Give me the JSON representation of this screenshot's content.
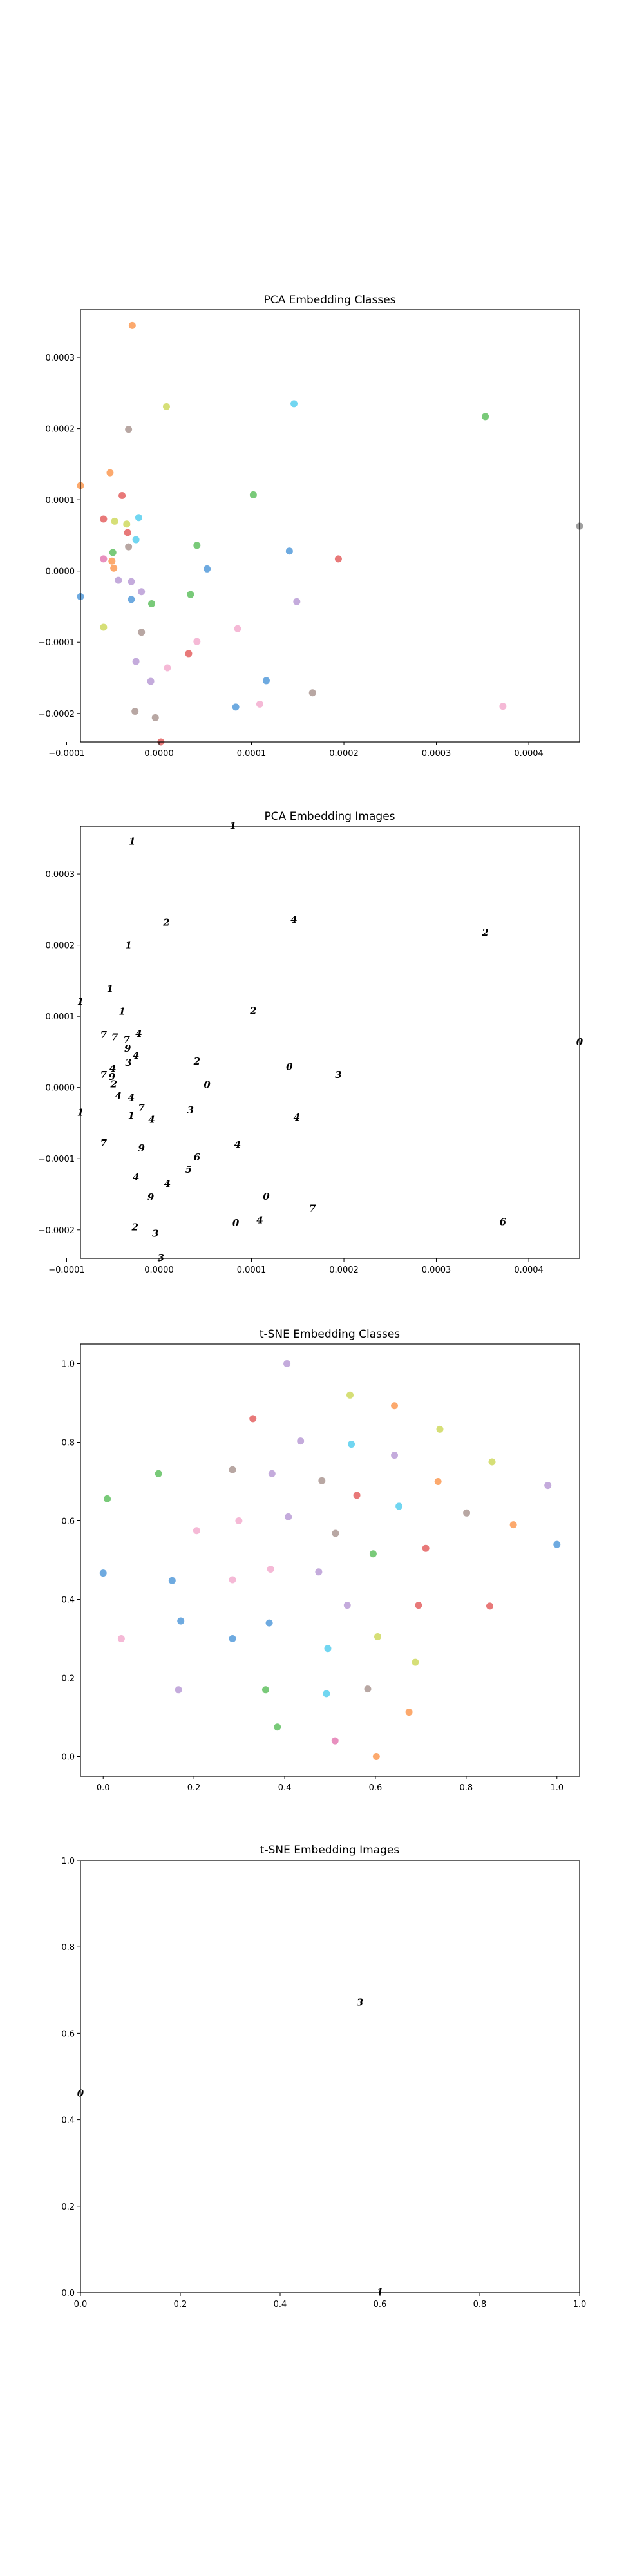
{
  "chart_data": [
    {
      "type": "scatter",
      "title": "PCA Embedding Classes",
      "xlim": [
        -8.5e-05,
        0.000455
      ],
      "ylim": [
        -0.00024,
        0.000367
      ],
      "xticks": [
        -0.0001,
        0.0,
        0.0001,
        0.0002,
        0.0003,
        0.0004
      ],
      "xtick_labels": [
        "−0.0001",
        "0.0000",
        "0.0001",
        "0.0002",
        "0.0003",
        "0.0004"
      ],
      "yticks": [
        -0.0002,
        -0.0001,
        0.0,
        0.0001,
        0.0002,
        0.0003
      ],
      "ytick_labels": [
        "−0.0002",
        "−0.0001",
        "0.0000",
        "0.0001",
        "0.0002",
        "0.0003"
      ],
      "points": [
        {
          "x": -2.9e-05,
          "y": 0.000345,
          "c": "#fb8c3c"
        },
        {
          "x": 8e-06,
          "y": 0.000231,
          "c": "#c8d44a"
        },
        {
          "x": 0.000146,
          "y": 0.000235,
          "c": "#41c8ec"
        },
        {
          "x": 0.000353,
          "y": 0.000217,
          "c": "#4cb84c"
        },
        {
          "x": -3.3e-05,
          "y": 0.000199,
          "c": "#a08a84"
        },
        {
          "x": -8.5e-05,
          "y": 0.00012,
          "c": "#fb8c3c"
        },
        {
          "x": -5.3e-05,
          "y": 0.000138,
          "c": "#fb8c3c"
        },
        {
          "x": -4e-05,
          "y": 0.000106,
          "c": "#e04c4c"
        },
        {
          "x": 0.000102,
          "y": 0.000107,
          "c": "#4cb84c"
        },
        {
          "x": -6e-05,
          "y": 7.3e-05,
          "c": "#e04c4c"
        },
        {
          "x": -4.8e-05,
          "y": 7e-05,
          "c": "#c8d44a"
        },
        {
          "x": -3.5e-05,
          "y": 6.6e-05,
          "c": "#c8d44a"
        },
        {
          "x": -2.2e-05,
          "y": 7.5e-05,
          "c": "#41c8ec"
        },
        {
          "x": 0.000455,
          "y": 6.3e-05,
          "c": "#7f7f7f"
        },
        {
          "x": -3.4e-05,
          "y": 5.4e-05,
          "c": "#e04c4c"
        },
        {
          "x": -2.5e-05,
          "y": 4.4e-05,
          "c": "#41c8ec"
        },
        {
          "x": -3.3e-05,
          "y": 3.4e-05,
          "c": "#a08a84"
        },
        {
          "x": 4.1e-05,
          "y": 3.6e-05,
          "c": "#4cb84c"
        },
        {
          "x": -5e-05,
          "y": 2.6e-05,
          "c": "#4cb84c"
        },
        {
          "x": 0.000141,
          "y": 2.8e-05,
          "c": "#3d8ed6"
        },
        {
          "x": -6e-05,
          "y": 1.7e-05,
          "c": "#e06baa"
        },
        {
          "x": -5.1e-05,
          "y": 1.4e-05,
          "c": "#fb8c3c"
        },
        {
          "x": 0.000194,
          "y": 1.7e-05,
          "c": "#e04c4c"
        },
        {
          "x": -4.9e-05,
          "y": 4e-06,
          "c": "#fb8c3c"
        },
        {
          "x": 5.2e-05,
          "y": 3e-06,
          "c": "#3d8ed6"
        },
        {
          "x": -8.5e-05,
          "y": -3.6e-05,
          "c": "#3d8ed6"
        },
        {
          "x": -4.4e-05,
          "y": -1.3e-05,
          "c": "#b08fd0"
        },
        {
          "x": -3e-05,
          "y": -1.5e-05,
          "c": "#b08fd0"
        },
        {
          "x": -1.9e-05,
          "y": -2.9e-05,
          "c": "#b08fd0"
        },
        {
          "x": 3.4e-05,
          "y": -3.3e-05,
          "c": "#4cb84c"
        },
        {
          "x": -3e-05,
          "y": -4e-05,
          "c": "#3d8ed6"
        },
        {
          "x": -8e-06,
          "y": -4.6e-05,
          "c": "#4cb84c"
        },
        {
          "x": 0.000149,
          "y": -4.3e-05,
          "c": "#b08fd0"
        },
        {
          "x": -6e-05,
          "y": -7.9e-05,
          "c": "#c8d44a"
        },
        {
          "x": -1.9e-05,
          "y": -8.6e-05,
          "c": "#a08a84"
        },
        {
          "x": 4.1e-05,
          "y": -9.9e-05,
          "c": "#f2a2c8"
        },
        {
          "x": 8.5e-05,
          "y": -8.1e-05,
          "c": "#f2a2c8"
        },
        {
          "x": 3.2e-05,
          "y": -0.000116,
          "c": "#e04c4c"
        },
        {
          "x": -2.5e-05,
          "y": -0.000127,
          "c": "#b08fd0"
        },
        {
          "x": 9e-06,
          "y": -0.000136,
          "c": "#f2a2c8"
        },
        {
          "x": -9e-06,
          "y": -0.000155,
          "c": "#b08fd0"
        },
        {
          "x": 0.000116,
          "y": -0.000154,
          "c": "#3d8ed6"
        },
        {
          "x": 0.000166,
          "y": -0.000171,
          "c": "#a08a84"
        },
        {
          "x": 8.3e-05,
          "y": -0.000191,
          "c": "#3d8ed6"
        },
        {
          "x": 0.000109,
          "y": -0.000187,
          "c": "#f2a2c8"
        },
        {
          "x": -2.6e-05,
          "y": -0.000197,
          "c": "#a08a84"
        },
        {
          "x": -4e-06,
          "y": -0.000206,
          "c": "#a08a84"
        },
        {
          "x": 0.000372,
          "y": -0.00019,
          "c": "#f2a2c8"
        },
        {
          "x": 2e-06,
          "y": -0.00024,
          "c": "#e04c4c"
        }
      ]
    },
    {
      "type": "scatter",
      "title": "PCA Embedding Images",
      "xlim": [
        -8.5e-05,
        0.000455
      ],
      "ylim": [
        -0.00024,
        0.000367
      ],
      "xticks": [
        -0.0001,
        0.0,
        0.0001,
        0.0002,
        0.0003,
        0.0004
      ],
      "xtick_labels": [
        "−0.0001",
        "0.0000",
        "0.0001",
        "0.0002",
        "0.0003",
        "0.0004"
      ],
      "yticks": [
        -0.0002,
        -0.0001,
        0.0,
        0.0001,
        0.0002,
        0.0003
      ],
      "ytick_labels": [
        "−0.0002",
        "−0.0001",
        "0.0000",
        "0.0001",
        "0.0002",
        "0.0003"
      ],
      "points": [
        {
          "x": -2.9e-05,
          "y": 0.000345,
          "g": "1"
        },
        {
          "x": 8e-05,
          "y": 0.000367,
          "g": "1"
        },
        {
          "x": 8e-06,
          "y": 0.000231,
          "g": "2"
        },
        {
          "x": 0.000146,
          "y": 0.000235,
          "g": "4"
        },
        {
          "x": 0.000353,
          "y": 0.000217,
          "g": "2"
        },
        {
          "x": -3.3e-05,
          "y": 0.000199,
          "g": "1"
        },
        {
          "x": -8.5e-05,
          "y": 0.00012,
          "g": "1"
        },
        {
          "x": -5.3e-05,
          "y": 0.000138,
          "g": "1"
        },
        {
          "x": -4e-05,
          "y": 0.000106,
          "g": "1"
        },
        {
          "x": 0.000102,
          "y": 0.000107,
          "g": "2"
        },
        {
          "x": -6e-05,
          "y": 7.3e-05,
          "g": "7"
        },
        {
          "x": -4.8e-05,
          "y": 7e-05,
          "g": "7"
        },
        {
          "x": -3.5e-05,
          "y": 6.6e-05,
          "g": "7"
        },
        {
          "x": -2.2e-05,
          "y": 7.5e-05,
          "g": "4"
        },
        {
          "x": 0.000455,
          "y": 6.3e-05,
          "g": "0"
        },
        {
          "x": -3.4e-05,
          "y": 5.4e-05,
          "g": "9"
        },
        {
          "x": -2.5e-05,
          "y": 4.4e-05,
          "g": "4"
        },
        {
          "x": -3.3e-05,
          "y": 3.4e-05,
          "g": "3"
        },
        {
          "x": 4.1e-05,
          "y": 3.6e-05,
          "g": "2"
        },
        {
          "x": -5e-05,
          "y": 2.6e-05,
          "g": "4"
        },
        {
          "x": 0.000141,
          "y": 2.8e-05,
          "g": "0"
        },
        {
          "x": -6e-05,
          "y": 1.7e-05,
          "g": "7"
        },
        {
          "x": -5.1e-05,
          "y": 1.4e-05,
          "g": "9"
        },
        {
          "x": 0.000194,
          "y": 1.7e-05,
          "g": "3"
        },
        {
          "x": -4.9e-05,
          "y": 4e-06,
          "g": "2"
        },
        {
          "x": 5.2e-05,
          "y": 3e-06,
          "g": "0"
        },
        {
          "x": -8.5e-05,
          "y": -3.6e-05,
          "g": "1"
        },
        {
          "x": -4.4e-05,
          "y": -1.3e-05,
          "g": "4"
        },
        {
          "x": -3e-05,
          "y": -1.5e-05,
          "g": "4"
        },
        {
          "x": -1.9e-05,
          "y": -2.9e-05,
          "g": "7"
        },
        {
          "x": 3.4e-05,
          "y": -3.3e-05,
          "g": "3"
        },
        {
          "x": -3e-05,
          "y": -4e-05,
          "g": "1"
        },
        {
          "x": -8e-06,
          "y": -4.6e-05,
          "g": "4"
        },
        {
          "x": 0.000149,
          "y": -4.3e-05,
          "g": "4"
        },
        {
          "x": -6e-05,
          "y": -7.9e-05,
          "g": "7"
        },
        {
          "x": -1.9e-05,
          "y": -8.6e-05,
          "g": "9"
        },
        {
          "x": 4.1e-05,
          "y": -9.9e-05,
          "g": "6"
        },
        {
          "x": 8.5e-05,
          "y": -8.1e-05,
          "g": "4"
        },
        {
          "x": 3.2e-05,
          "y": -0.000116,
          "g": "5"
        },
        {
          "x": -2.5e-05,
          "y": -0.000127,
          "g": "4"
        },
        {
          "x": 9e-06,
          "y": -0.000136,
          "g": "4"
        },
        {
          "x": -9e-06,
          "y": -0.000155,
          "g": "9"
        },
        {
          "x": 0.000116,
          "y": -0.000154,
          "g": "0"
        },
        {
          "x": 0.000166,
          "y": -0.000171,
          "g": "7"
        },
        {
          "x": 8.3e-05,
          "y": -0.000191,
          "g": "0"
        },
        {
          "x": 0.000109,
          "y": -0.000187,
          "g": "4"
        },
        {
          "x": -2.6e-05,
          "y": -0.000197,
          "g": "2"
        },
        {
          "x": -4e-06,
          "y": -0.000206,
          "g": "3"
        },
        {
          "x": 0.000372,
          "y": -0.00019,
          "g": "6"
        },
        {
          "x": 2e-06,
          "y": -0.00024,
          "g": "3"
        }
      ]
    },
    {
      "type": "scatter",
      "title": "t-SNE Embedding Classes",
      "xlim": [
        -0.05,
        1.05
      ],
      "ylim": [
        -0.05,
        1.05
      ],
      "xticks": [
        0.0,
        0.2,
        0.4,
        0.6,
        0.8,
        1.0
      ],
      "xtick_labels": [
        "0.0",
        "0.2",
        "0.4",
        "0.6",
        "0.8",
        "1.0"
      ],
      "yticks": [
        0.0,
        0.2,
        0.4,
        0.6,
        0.8,
        1.0
      ],
      "ytick_labels": [
        "0.0",
        "0.2",
        "0.4",
        "0.6",
        "0.8",
        "1.0"
      ],
      "points": [
        {
          "x": 0.405,
          "y": 1.0,
          "c": "#b08fd0"
        },
        {
          "x": 0.544,
          "y": 0.92,
          "c": "#c8d44a"
        },
        {
          "x": 0.642,
          "y": 0.893,
          "c": "#fb8c3c"
        },
        {
          "x": 0.33,
          "y": 0.86,
          "c": "#e04c4c"
        },
        {
          "x": 0.742,
          "y": 0.833,
          "c": "#c8d44a"
        },
        {
          "x": 0.435,
          "y": 0.803,
          "c": "#b08fd0"
        },
        {
          "x": 0.547,
          "y": 0.795,
          "c": "#41c8ec"
        },
        {
          "x": 0.642,
          "y": 0.767,
          "c": "#b08fd0"
        },
        {
          "x": 0.857,
          "y": 0.75,
          "c": "#c8d44a"
        },
        {
          "x": 0.285,
          "y": 0.73,
          "c": "#a08a84"
        },
        {
          "x": 0.372,
          "y": 0.72,
          "c": "#b08fd0"
        },
        {
          "x": 0.122,
          "y": 0.72,
          "c": "#4cb84c"
        },
        {
          "x": 0.482,
          "y": 0.702,
          "c": "#a08a84"
        },
        {
          "x": 0.738,
          "y": 0.7,
          "c": "#fb8c3c"
        },
        {
          "x": 0.98,
          "y": 0.69,
          "c": "#b08fd0"
        },
        {
          "x": 0.559,
          "y": 0.665,
          "c": "#e04c4c"
        },
        {
          "x": 0.009,
          "y": 0.656,
          "c": "#4cb84c"
        },
        {
          "x": 0.652,
          "y": 0.637,
          "c": "#41c8ec"
        },
        {
          "x": 0.801,
          "y": 0.62,
          "c": "#a08a84"
        },
        {
          "x": 0.408,
          "y": 0.61,
          "c": "#b08fd0"
        },
        {
          "x": 0.299,
          "y": 0.6,
          "c": "#f2a2c8"
        },
        {
          "x": 0.904,
          "y": 0.59,
          "c": "#fb8c3c"
        },
        {
          "x": 0.206,
          "y": 0.575,
          "c": "#f2a2c8"
        },
        {
          "x": 0.512,
          "y": 0.568,
          "c": "#a08a84"
        },
        {
          "x": 1.0,
          "y": 0.54,
          "c": "#3d8ed6"
        },
        {
          "x": 0.711,
          "y": 0.53,
          "c": "#e04c4c"
        },
        {
          "x": 0.595,
          "y": 0.516,
          "c": "#4cb84c"
        },
        {
          "x": 0.369,
          "y": 0.477,
          "c": "#f2a2c8"
        },
        {
          "x": 0.0,
          "y": 0.467,
          "c": "#3d8ed6"
        },
        {
          "x": 0.475,
          "y": 0.47,
          "c": "#b08fd0"
        },
        {
          "x": 0.285,
          "y": 0.45,
          "c": "#f2a2c8"
        },
        {
          "x": 0.152,
          "y": 0.448,
          "c": "#3d8ed6"
        },
        {
          "x": 0.538,
          "y": 0.385,
          "c": "#b08fd0"
        },
        {
          "x": 0.695,
          "y": 0.385,
          "c": "#e04c4c"
        },
        {
          "x": 0.852,
          "y": 0.383,
          "c": "#e04c4c"
        },
        {
          "x": 0.171,
          "y": 0.345,
          "c": "#3d8ed6"
        },
        {
          "x": 0.366,
          "y": 0.34,
          "c": "#3d8ed6"
        },
        {
          "x": 0.605,
          "y": 0.305,
          "c": "#c8d44a"
        },
        {
          "x": 0.04,
          "y": 0.3,
          "c": "#f2a2c8"
        },
        {
          "x": 0.285,
          "y": 0.3,
          "c": "#3d8ed6"
        },
        {
          "x": 0.495,
          "y": 0.275,
          "c": "#41c8ec"
        },
        {
          "x": 0.688,
          "y": 0.24,
          "c": "#c8d44a"
        },
        {
          "x": 0.166,
          "y": 0.17,
          "c": "#b08fd0"
        },
        {
          "x": 0.358,
          "y": 0.17,
          "c": "#4cb84c"
        },
        {
          "x": 0.492,
          "y": 0.16,
          "c": "#41c8ec"
        },
        {
          "x": 0.583,
          "y": 0.172,
          "c": "#a08a84"
        },
        {
          "x": 0.674,
          "y": 0.113,
          "c": "#fb8c3c"
        },
        {
          "x": 0.384,
          "y": 0.075,
          "c": "#4cb84c"
        },
        {
          "x": 0.511,
          "y": 0.04,
          "c": "#e06baa"
        },
        {
          "x": 0.602,
          "y": 0.0,
          "c": "#fb8c3c"
        }
      ]
    },
    {
      "type": "scatter",
      "title": "t-SNE Embedding Images",
      "xlim": [
        0.0,
        1.0
      ],
      "ylim": [
        0.0,
        1.0
      ],
      "xticks": [
        0.0,
        0.2,
        0.4,
        0.6,
        0.8,
        1.0
      ],
      "xtick_labels": [
        "0.0",
        "0.2",
        "0.4",
        "0.6",
        "0.8",
        "1.0"
      ],
      "yticks": [
        0.0,
        0.2,
        0.4,
        0.6,
        0.8,
        1.0
      ],
      "ytick_labels": [
        "0.0",
        "0.2",
        "0.4",
        "0.6",
        "0.8",
        "1.0"
      ],
      "points": [
        {
          "x": 0.56,
          "y": 0.67,
          "g": "3"
        },
        {
          "x": 0.0,
          "y": 0.46,
          "g": "0"
        },
        {
          "x": 0.6,
          "y": 0.0,
          "g": "1"
        }
      ]
    }
  ]
}
